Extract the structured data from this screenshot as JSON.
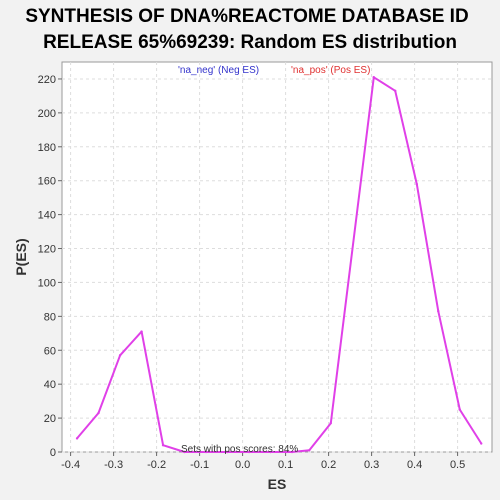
{
  "chart_data": {
    "type": "line",
    "title_line1": "SYNTHESIS OF DNA%REACTOME DATABASE ID",
    "title_line2": "RELEASE 65%69239: Random ES distribution",
    "xlabel": "ES",
    "ylabel": "P(ES)",
    "xlim": [
      -0.42,
      0.58
    ],
    "ylim": [
      0,
      230
    ],
    "x_ticks": [
      -0.4,
      -0.3,
      -0.2,
      -0.1,
      0.0,
      0.1,
      0.2,
      0.3,
      0.4,
      0.5
    ],
    "x_tick_labels": [
      "-0.4",
      "-0.3",
      "-0.2",
      "-0.1",
      "0.0",
      "0.1",
      "0.2",
      "0.3",
      "0.4",
      "0.5"
    ],
    "y_ticks": [
      0,
      20,
      40,
      60,
      80,
      100,
      120,
      140,
      160,
      180,
      200,
      220
    ],
    "y_tick_labels": [
      "0",
      "20",
      "40",
      "60",
      "80",
      "100",
      "120",
      "140",
      "160",
      "180",
      "200",
      "220"
    ],
    "grid": true,
    "legend_placement": "top",
    "legend": [
      {
        "label": "'na_neg' (Neg ES)",
        "color": "#3333cc"
      },
      {
        "label": "'na_pos' (Pos ES)",
        "color": "#e03030"
      }
    ],
    "annotation": "Sets with pos scores: 84%",
    "series": [
      {
        "color": "#e040e8",
        "x": [
          -0.385,
          -0.335,
          -0.285,
          -0.235,
          -0.185,
          -0.135,
          -0.085,
          -0.035,
          0.015,
          0.065,
          0.115,
          0.155,
          0.205,
          0.305,
          0.355,
          0.405,
          0.455,
          0.505,
          0.555
        ],
        "y": [
          8,
          23,
          57,
          71,
          4,
          0,
          0,
          0,
          0,
          0,
          0,
          1,
          17,
          221,
          213,
          158,
          83,
          25,
          5
        ]
      }
    ]
  }
}
